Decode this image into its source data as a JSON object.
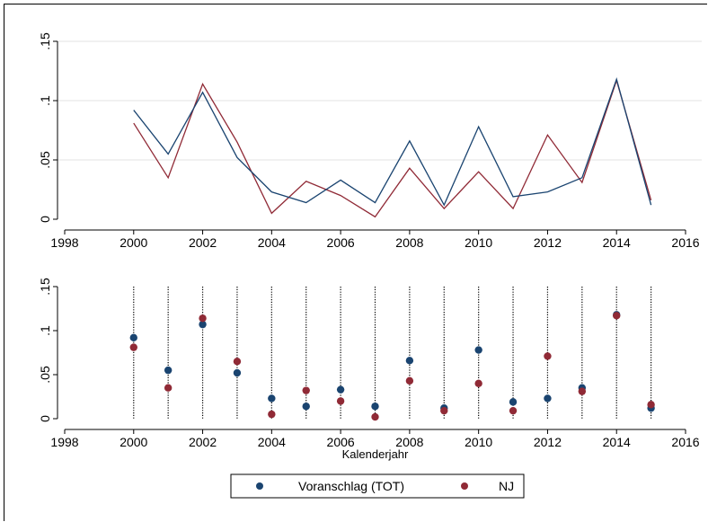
{
  "chart_data": [
    {
      "type": "line",
      "x": [
        2000,
        2001,
        2002,
        2003,
        2004,
        2005,
        2006,
        2007,
        2008,
        2009,
        2010,
        2011,
        2012,
        2013,
        2014,
        2015
      ],
      "series": [
        {
          "name": "Voranschlag (TOT)",
          "color": "#1a4470",
          "values": [
            0.092,
            0.055,
            0.107,
            0.052,
            0.023,
            0.014,
            0.033,
            0.014,
            0.066,
            0.012,
            0.078,
            0.019,
            0.023,
            0.035,
            0.118,
            0.012
          ]
        },
        {
          "name": "NJ",
          "color": "#902a36",
          "values": [
            0.081,
            0.035,
            0.114,
            0.065,
            0.005,
            0.032,
            0.02,
            0.002,
            0.043,
            0.009,
            0.04,
            0.009,
            0.071,
            0.031,
            0.117,
            0.016
          ]
        }
      ],
      "xticks": [
        "1998",
        "2000",
        "2002",
        "2004",
        "2006",
        "2008",
        "2010",
        "2012",
        "2014",
        "2016"
      ],
      "yticks": [
        "0",
        ".05",
        ".1",
        ".15"
      ],
      "xlim": [
        1998,
        2016
      ],
      "ylim": [
        0,
        0.15
      ],
      "xlabel": "",
      "ylabel": "",
      "grid": true
    },
    {
      "type": "scatter",
      "x": [
        2000,
        2001,
        2002,
        2003,
        2004,
        2005,
        2006,
        2007,
        2008,
        2009,
        2010,
        2011,
        2012,
        2013,
        2014,
        2015
      ],
      "series": [
        {
          "name": "Voranschlag (TOT)",
          "color": "#1a4470",
          "values": [
            0.092,
            0.055,
            0.107,
            0.052,
            0.023,
            0.014,
            0.033,
            0.014,
            0.066,
            0.012,
            0.078,
            0.019,
            0.023,
            0.035,
            0.118,
            0.012
          ]
        },
        {
          "name": "NJ",
          "color": "#902a36",
          "values": [
            0.081,
            0.035,
            0.114,
            0.065,
            0.005,
            0.032,
            0.02,
            0.002,
            0.043,
            0.009,
            0.04,
            0.009,
            0.071,
            0.031,
            0.117,
            0.016
          ]
        }
      ],
      "xticks": [
        "1998",
        "2000",
        "2002",
        "2004",
        "2006",
        "2008",
        "2010",
        "2012",
        "2014",
        "2016"
      ],
      "yticks": [
        "0",
        ".05",
        ".1",
        ".15"
      ],
      "xlim": [
        1998,
        2016
      ],
      "ylim": [
        0,
        0.15
      ],
      "xlabel": "Kalenderjahr",
      "ylabel": "",
      "grid": false,
      "vertical_dotted_lines": true
    }
  ],
  "legend": {
    "placement": "bottom",
    "items": [
      {
        "label": "Voranschlag (TOT)",
        "color": "#1a4470"
      },
      {
        "label": "NJ",
        "color": "#902a36"
      }
    ]
  }
}
